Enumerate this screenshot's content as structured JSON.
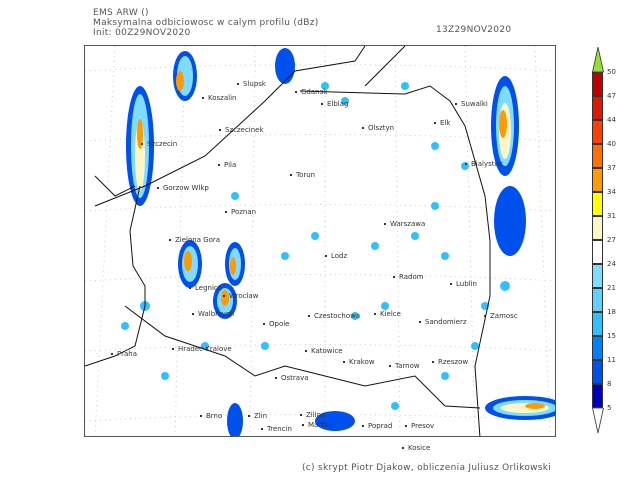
{
  "header": {
    "model": "EMS ARW ()",
    "field": "Maksymalna odbiciowosc w calym profilu (dBz)",
    "init": "Init: 00Z29NOV2020",
    "valid": "13Z29NOV2020"
  },
  "cities": [
    "Koszalin",
    "Slupsk",
    "Gdansk",
    "Elblag",
    "Olsztyn",
    "Suwalki",
    "Elk",
    "Bialystok",
    "Szczecinek",
    "Szczecin",
    "Pila",
    "Torun",
    "Gorzow Wlkp",
    "Poznan",
    "Warszawa",
    "Zielona Gora",
    "Lodz",
    "Radom",
    "Lublin",
    "Legnica",
    "Wroclaw",
    "Walbrzych",
    "Opole",
    "Czestochowa",
    "Kielce",
    "Sandomierz",
    "Zamosc",
    "Praha",
    "Hradec Kralove",
    "Katowice",
    "Krakow",
    "Tarnow",
    "Rzeszow",
    "Ostrava",
    "Brno",
    "Zlin",
    "Zilina",
    "Martin",
    "Poprad",
    "Presov",
    "Trencin",
    "Kosice"
  ],
  "colorbar": {
    "unit": "dBz",
    "labels": [
      "50",
      "47",
      "44",
      "40",
      "37",
      "34",
      "31",
      "27",
      "24",
      "21",
      "18",
      "15",
      "11",
      "8",
      "5"
    ],
    "colors": [
      "#c00000",
      "#dd1a00",
      "#ff4000",
      "#ff7000",
      "#ff9a00",
      "#ffff00",
      "#fff6c8",
      "#ffffff",
      "#80dcff",
      "#60d0ff",
      "#30c0ff",
      "#0080ff",
      "#0050ee",
      "#0000c0"
    ],
    "over_color": "#99dd33",
    "under_color": "#ffffff"
  },
  "credit": "(c) skrypt Piotr Djakow, obliczenia Juliusz Orlikowski"
}
